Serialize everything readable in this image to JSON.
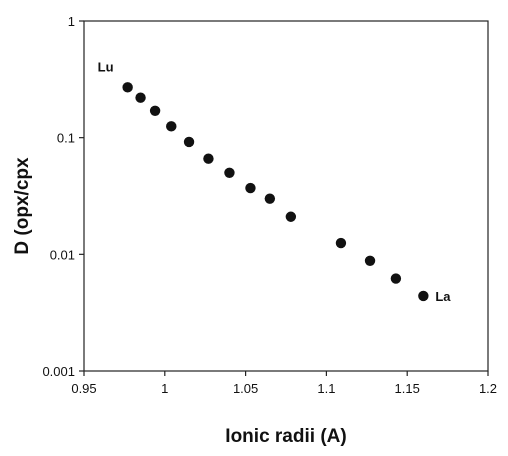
{
  "chart_data": {
    "type": "scatter",
    "title": "",
    "xlabel": "Ionic radii (A)",
    "ylabel": "D (opx/cpx",
    "xlim": [
      0.95,
      1.2
    ],
    "ylim": [
      0.001,
      1
    ],
    "y_scale": "log",
    "grid": false,
    "x_ticks": [
      0.95,
      1,
      1.05,
      1.1,
      1.15,
      1.2
    ],
    "x_tick_labels": [
      "0.95",
      "1",
      "1.05",
      "1.1",
      "1.15",
      "1.2"
    ],
    "y_ticks": [
      0.001,
      0.01,
      0.1,
      1
    ],
    "y_tick_labels": [
      "0.001",
      "0.01",
      "0.1",
      "1"
    ],
    "series": [
      {
        "color": "#111111",
        "x": [
          0.977,
          0.985,
          0.994,
          1.004,
          1.015,
          1.027,
          1.04,
          1.053,
          1.065,
          1.078,
          1.109,
          1.127,
          1.143,
          1.16
        ],
        "y": [
          0.27,
          0.22,
          0.17,
          0.125,
          0.092,
          0.066,
          0.05,
          0.037,
          0.03,
          0.021,
          0.0125,
          0.0088,
          0.0062,
          0.0044
        ]
      }
    ],
    "annotations": [
      {
        "text": "Lu",
        "x": 0.977,
        "y": 0.27
      },
      {
        "text": "La",
        "x": 1.16,
        "y": 0.0044
      }
    ]
  }
}
